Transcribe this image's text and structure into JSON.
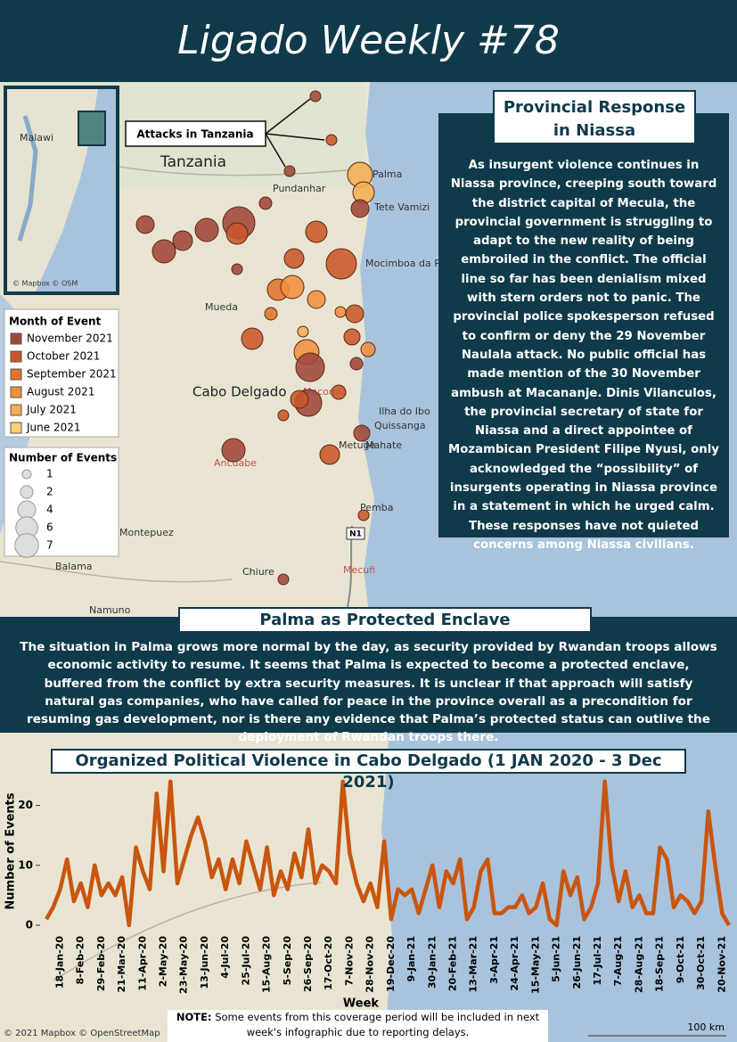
{
  "header": {
    "title": "Ligado Weekly #78"
  },
  "map": {
    "labels": [
      "Tanzania",
      "Malawi",
      "Cabo Delgado",
      "Mueda",
      "Pundanhar",
      "Balama",
      "Chiure",
      "Pemba",
      "Namuno",
      "Montepuez",
      "Mecufi",
      "Metuge",
      "Quissanga",
      "Ilha do Ibo",
      "Macomia",
      "Mocimboa da Praia",
      "Palma",
      "Tete Vamizi",
      "Mahate",
      "Ancuabe"
    ],
    "callout": "Attacks in Tanzania",
    "road": "N1",
    "inset_credit": "© Mapbox © OSM",
    "credit": "© 2021 Mapbox © OpenStreetMap",
    "scale": "100 km"
  },
  "legend_month": {
    "title": "Month of Event",
    "items": [
      {
        "label": "November 2021",
        "color": "#a0473a"
      },
      {
        "label": "October 2021",
        "color": "#c8562a"
      },
      {
        "label": "September 2021",
        "color": "#e0742e"
      },
      {
        "label": "August 2021",
        "color": "#f0913f"
      },
      {
        "label": "July 2021",
        "color": "#f5ae55"
      },
      {
        "label": "June 2021",
        "color": "#f8cf78"
      }
    ]
  },
  "legend_size": {
    "title": "Number of Events",
    "values": [
      1,
      2,
      4,
      6,
      7
    ]
  },
  "niassa": {
    "title": "Provincial Response in Niassa",
    "text": "As insurgent violence continues in Niassa province, creeping south toward the district capital of Mecula, the provincial government is struggling to adapt to the new reality of being embroiled in the conflict. The official line so far has been denialism mixed with stern orders not to panic. The provincial police spokesperson refused to confirm or deny the 29 November Naulala attack. No public official has made mention of the 30 November ambush at Macananje. Dinis Vilanculos, the provincial secretary of state for Niassa and a direct appointee of Mozambican President Filipe Nyusi, only acknowledged the “possibility” of insurgents operating in Niassa province in a statement in which he urged calm. These responses have not quieted concerns among Niassa civilians."
  },
  "palma": {
    "title": "Palma as Protected Enclave",
    "text": "The situation in Palma grows more normal by the day, as security provided by Rwandan troops allows economic activity to resume. It seems that Palma is expected to become a protected enclave, buffered from the conflict by extra security measures. It is unclear if that approach will satisfy natural gas companies, who have called for peace in the province overall as a precondition for resuming gas development, nor is there any evidence that Palma’s protected status can outlive the deployment of Rwandan troops there."
  },
  "note": {
    "label": "NOTE:",
    "text": "Some events from this coverage period will be included in next week's infographic due to reporting delays."
  },
  "chart_data": {
    "type": "line",
    "title": "Organized Political Violence in Cabo Delgado (1 JAN 2020 - 3 Dec 2021)",
    "x_label": "Week",
    "y_label": "Number of Events",
    "categories": [
      null,
      null,
      "18-Jan-20",
      null,
      null,
      "8-Feb-20",
      null,
      null,
      "29-Feb-20",
      null,
      null,
      "21-Mar-20",
      null,
      null,
      "11-Apr-20",
      null,
      null,
      "2-May-20",
      null,
      null,
      "23-May-20",
      null,
      null,
      "13-Jun-20",
      null,
      null,
      "4-Jul-20",
      null,
      null,
      "25-Jul-20",
      null,
      null,
      "15-Aug-20",
      null,
      null,
      "5-Sep-20",
      null,
      null,
      "26-Sep-20",
      null,
      null,
      "17-Oct-20",
      null,
      null,
      "7-Nov-20",
      null,
      null,
      "28-Nov-20",
      null,
      null,
      "19-Dec-20",
      null,
      null,
      "9-Jan-21",
      null,
      null,
      "30-Jan-21",
      null,
      null,
      "20-Feb-21",
      null,
      null,
      "13-Mar-21",
      null,
      null,
      "3-Apr-21",
      null,
      null,
      "24-Apr-21",
      null,
      null,
      "15-May-21",
      null,
      null,
      "5-Jun-21",
      null,
      null,
      "26-Jun-21",
      null,
      null,
      "17-Jul-21",
      null,
      null,
      "7-Aug-21",
      null,
      null,
      "28-Aug-21",
      null,
      null,
      "18-Sep-21",
      null,
      null,
      "9-Oct-21",
      null,
      null,
      "30-Oct-21",
      null,
      null,
      "20-Nov-21",
      null
    ],
    "series": [
      {
        "name": "Number of Events",
        "color": "#c8560f",
        "values": [
          1,
          3,
          6,
          11,
          4,
          7,
          3,
          10,
          5,
          7,
          5,
          8,
          0,
          13,
          9,
          6,
          22,
          9,
          24,
          7,
          11,
          15,
          18,
          14,
          8,
          11,
          6,
          11,
          7,
          14,
          10,
          6,
          13,
          5,
          9,
          6,
          12,
          8,
          16,
          7,
          10,
          9,
          7,
          24,
          12,
          7,
          4,
          7,
          3,
          14,
          1,
          6,
          5,
          6,
          2,
          6,
          10,
          3,
          9,
          7,
          11,
          1,
          3,
          9,
          11,
          2,
          2,
          3,
          3,
          5,
          2,
          3,
          7,
          1,
          0,
          9,
          5,
          8,
          1,
          3,
          7,
          24,
          10,
          4,
          9,
          3,
          5,
          2,
          2,
          13,
          11,
          3,
          5,
          4,
          2,
          4,
          19,
          10,
          2,
          0
        ]
      }
    ],
    "ylim": [
      0,
      25
    ],
    "yticks": [
      0,
      10,
      20
    ]
  }
}
